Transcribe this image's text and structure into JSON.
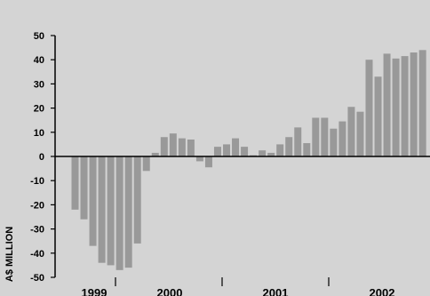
{
  "chart_data": {
    "type": "bar",
    "ylabel": "A$ MILLION",
    "ylim": [
      -50,
      50
    ],
    "yticks": [
      50,
      40,
      30,
      20,
      10,
      0,
      -10,
      -20,
      -30,
      -40,
      -50
    ],
    "year_labels": [
      "1999",
      "2000",
      "2001",
      "2002"
    ],
    "bar_color": "#999999",
    "values": [
      -22,
      -26,
      -37,
      -44,
      -45,
      -47,
      -46,
      -36,
      -6,
      1.5,
      8,
      9.5,
      7.5,
      7,
      -2,
      -4.5,
      4,
      5,
      7.5,
      4,
      0.5,
      2.5,
      1.5,
      5,
      8,
      12,
      5.5,
      16,
      16,
      11.5,
      14.5,
      20.5,
      18.5,
      40,
      33,
      42.5,
      40.5,
      41.5,
      43,
      44
    ],
    "grid": false,
    "legend": "none"
  }
}
